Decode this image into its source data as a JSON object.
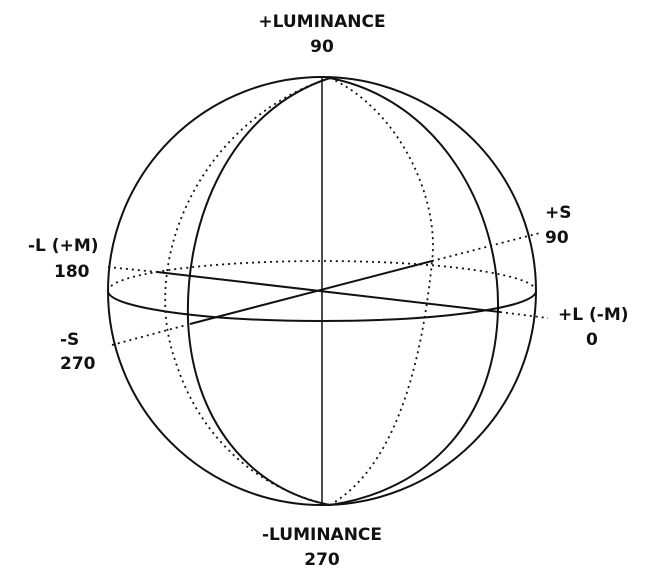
{
  "labels": {
    "top": {
      "name": "+LUMINANCE",
      "angle": "90"
    },
    "bottom": {
      "name": "-LUMINANCE",
      "angle": "270"
    },
    "plus_s": {
      "name": "+S",
      "angle": "90"
    },
    "minus_s": {
      "name": "-S",
      "angle": "270"
    },
    "minus_l": {
      "name": "-L (+M)",
      "angle": "180"
    },
    "plus_l": {
      "name": "+L (-M)",
      "angle": "0"
    }
  }
}
